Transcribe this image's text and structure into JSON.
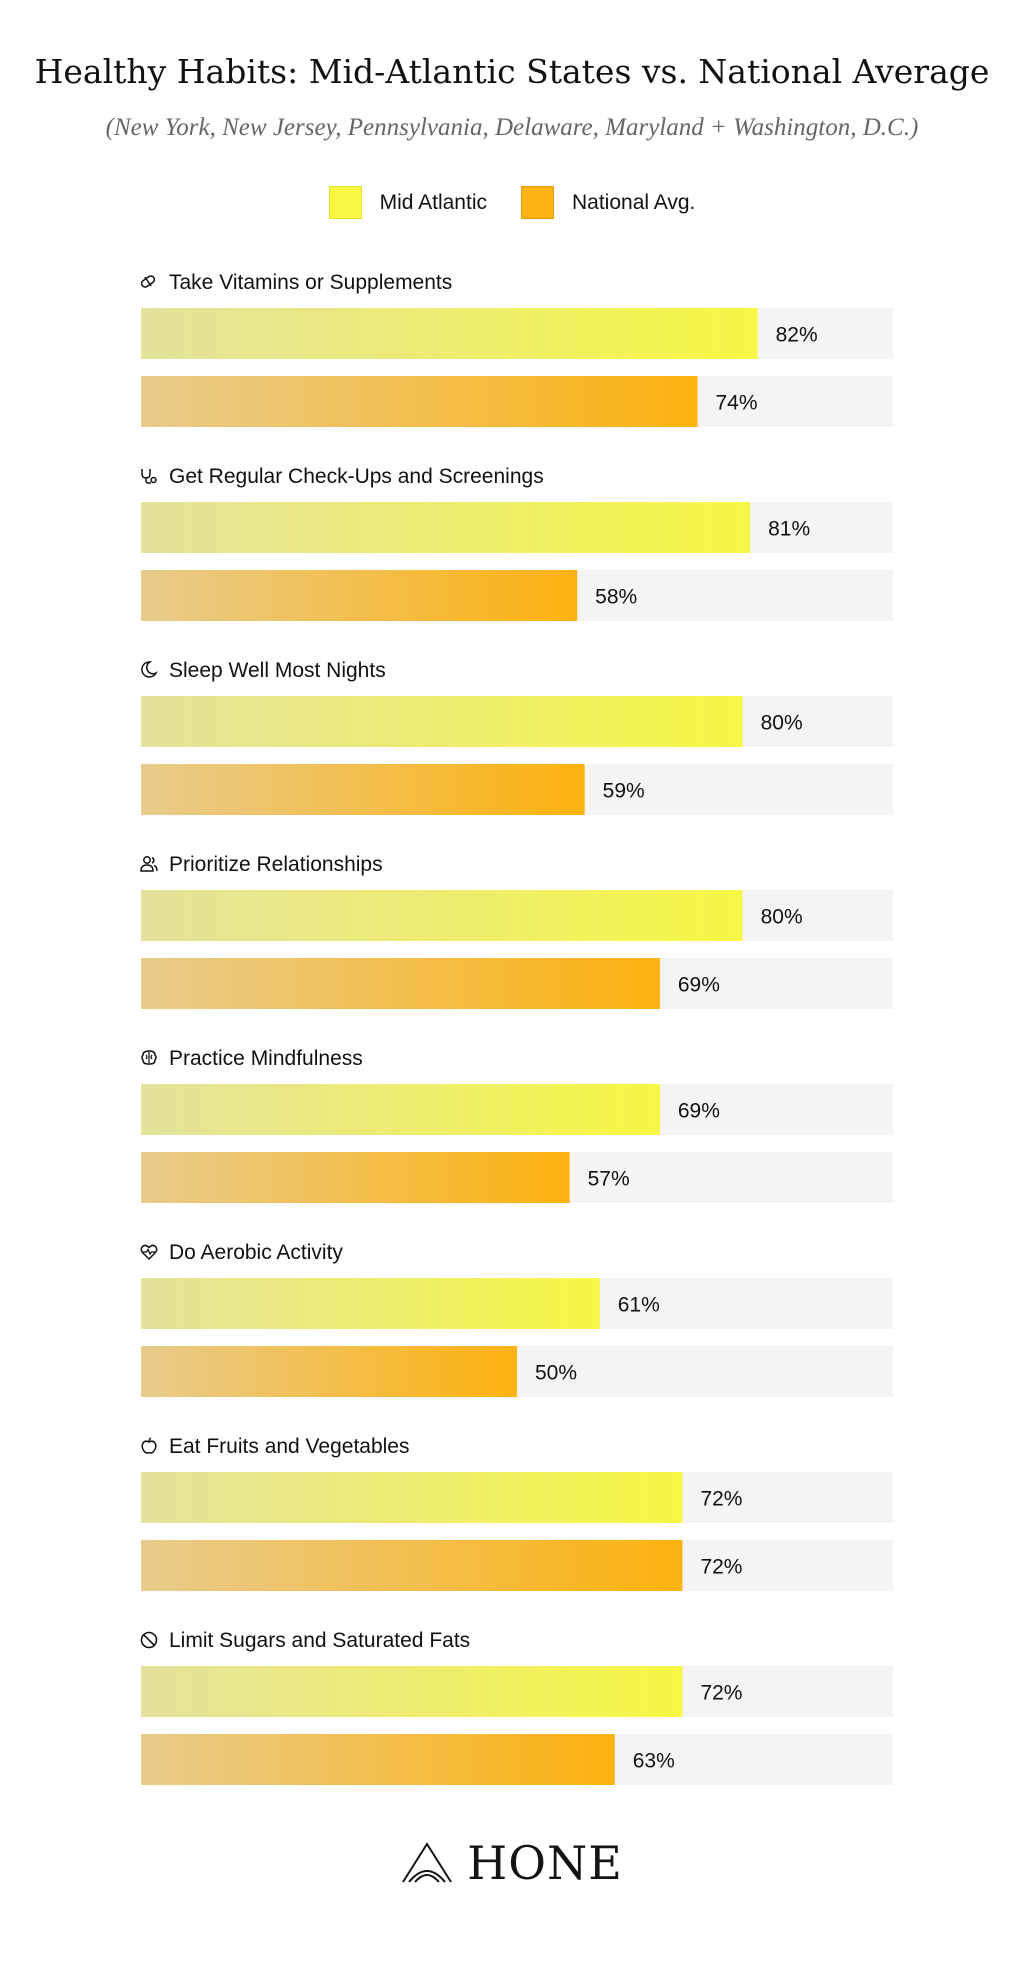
{
  "chart_data": {
    "type": "bar",
    "orientation": "horizontal",
    "title": "Healthy Habits: Mid-Atlantic States vs. National Average",
    "subtitle": "(New York, New Jersey, Pennsylvania, Delaware, Maryland + Washington, D.C.)",
    "categories": [
      "Take Vitamins or Supplements",
      "Get Regular Check-Ups and Screenings",
      "Sleep Well Most Nights",
      "Prioritize Relationships",
      "Practice Mindfulness",
      "Do Aerobic Activity",
      "Eat Fruits and Vegetables",
      "Limit Sugars and Saturated Fats"
    ],
    "category_icons": [
      "pill-icon",
      "stethoscope-icon",
      "moon-icon",
      "people-icon",
      "brain-icon",
      "heartbeat-icon",
      "apple-icon",
      "ban-icon"
    ],
    "series": [
      {
        "name": "Mid Atlantic",
        "values": [
          82,
          81,
          80,
          80,
          69,
          61,
          72,
          72
        ],
        "color_start": "#E4E29C",
        "color_end": "#F7F745",
        "swatch": "#FAF845"
      },
      {
        "name": "National Avg.",
        "values": [
          74,
          58,
          59,
          69,
          57,
          50,
          72,
          63
        ],
        "color_start": "#E8CB8C",
        "color_end": "#FDB20F",
        "swatch": "#FCB415"
      }
    ],
    "value_suffix": "%",
    "xlim": [
      0,
      100
    ],
    "track_color": "#F5F4F2",
    "legend_position": "top-center",
    "grid": false
  },
  "brand": {
    "name": "HONE"
  }
}
